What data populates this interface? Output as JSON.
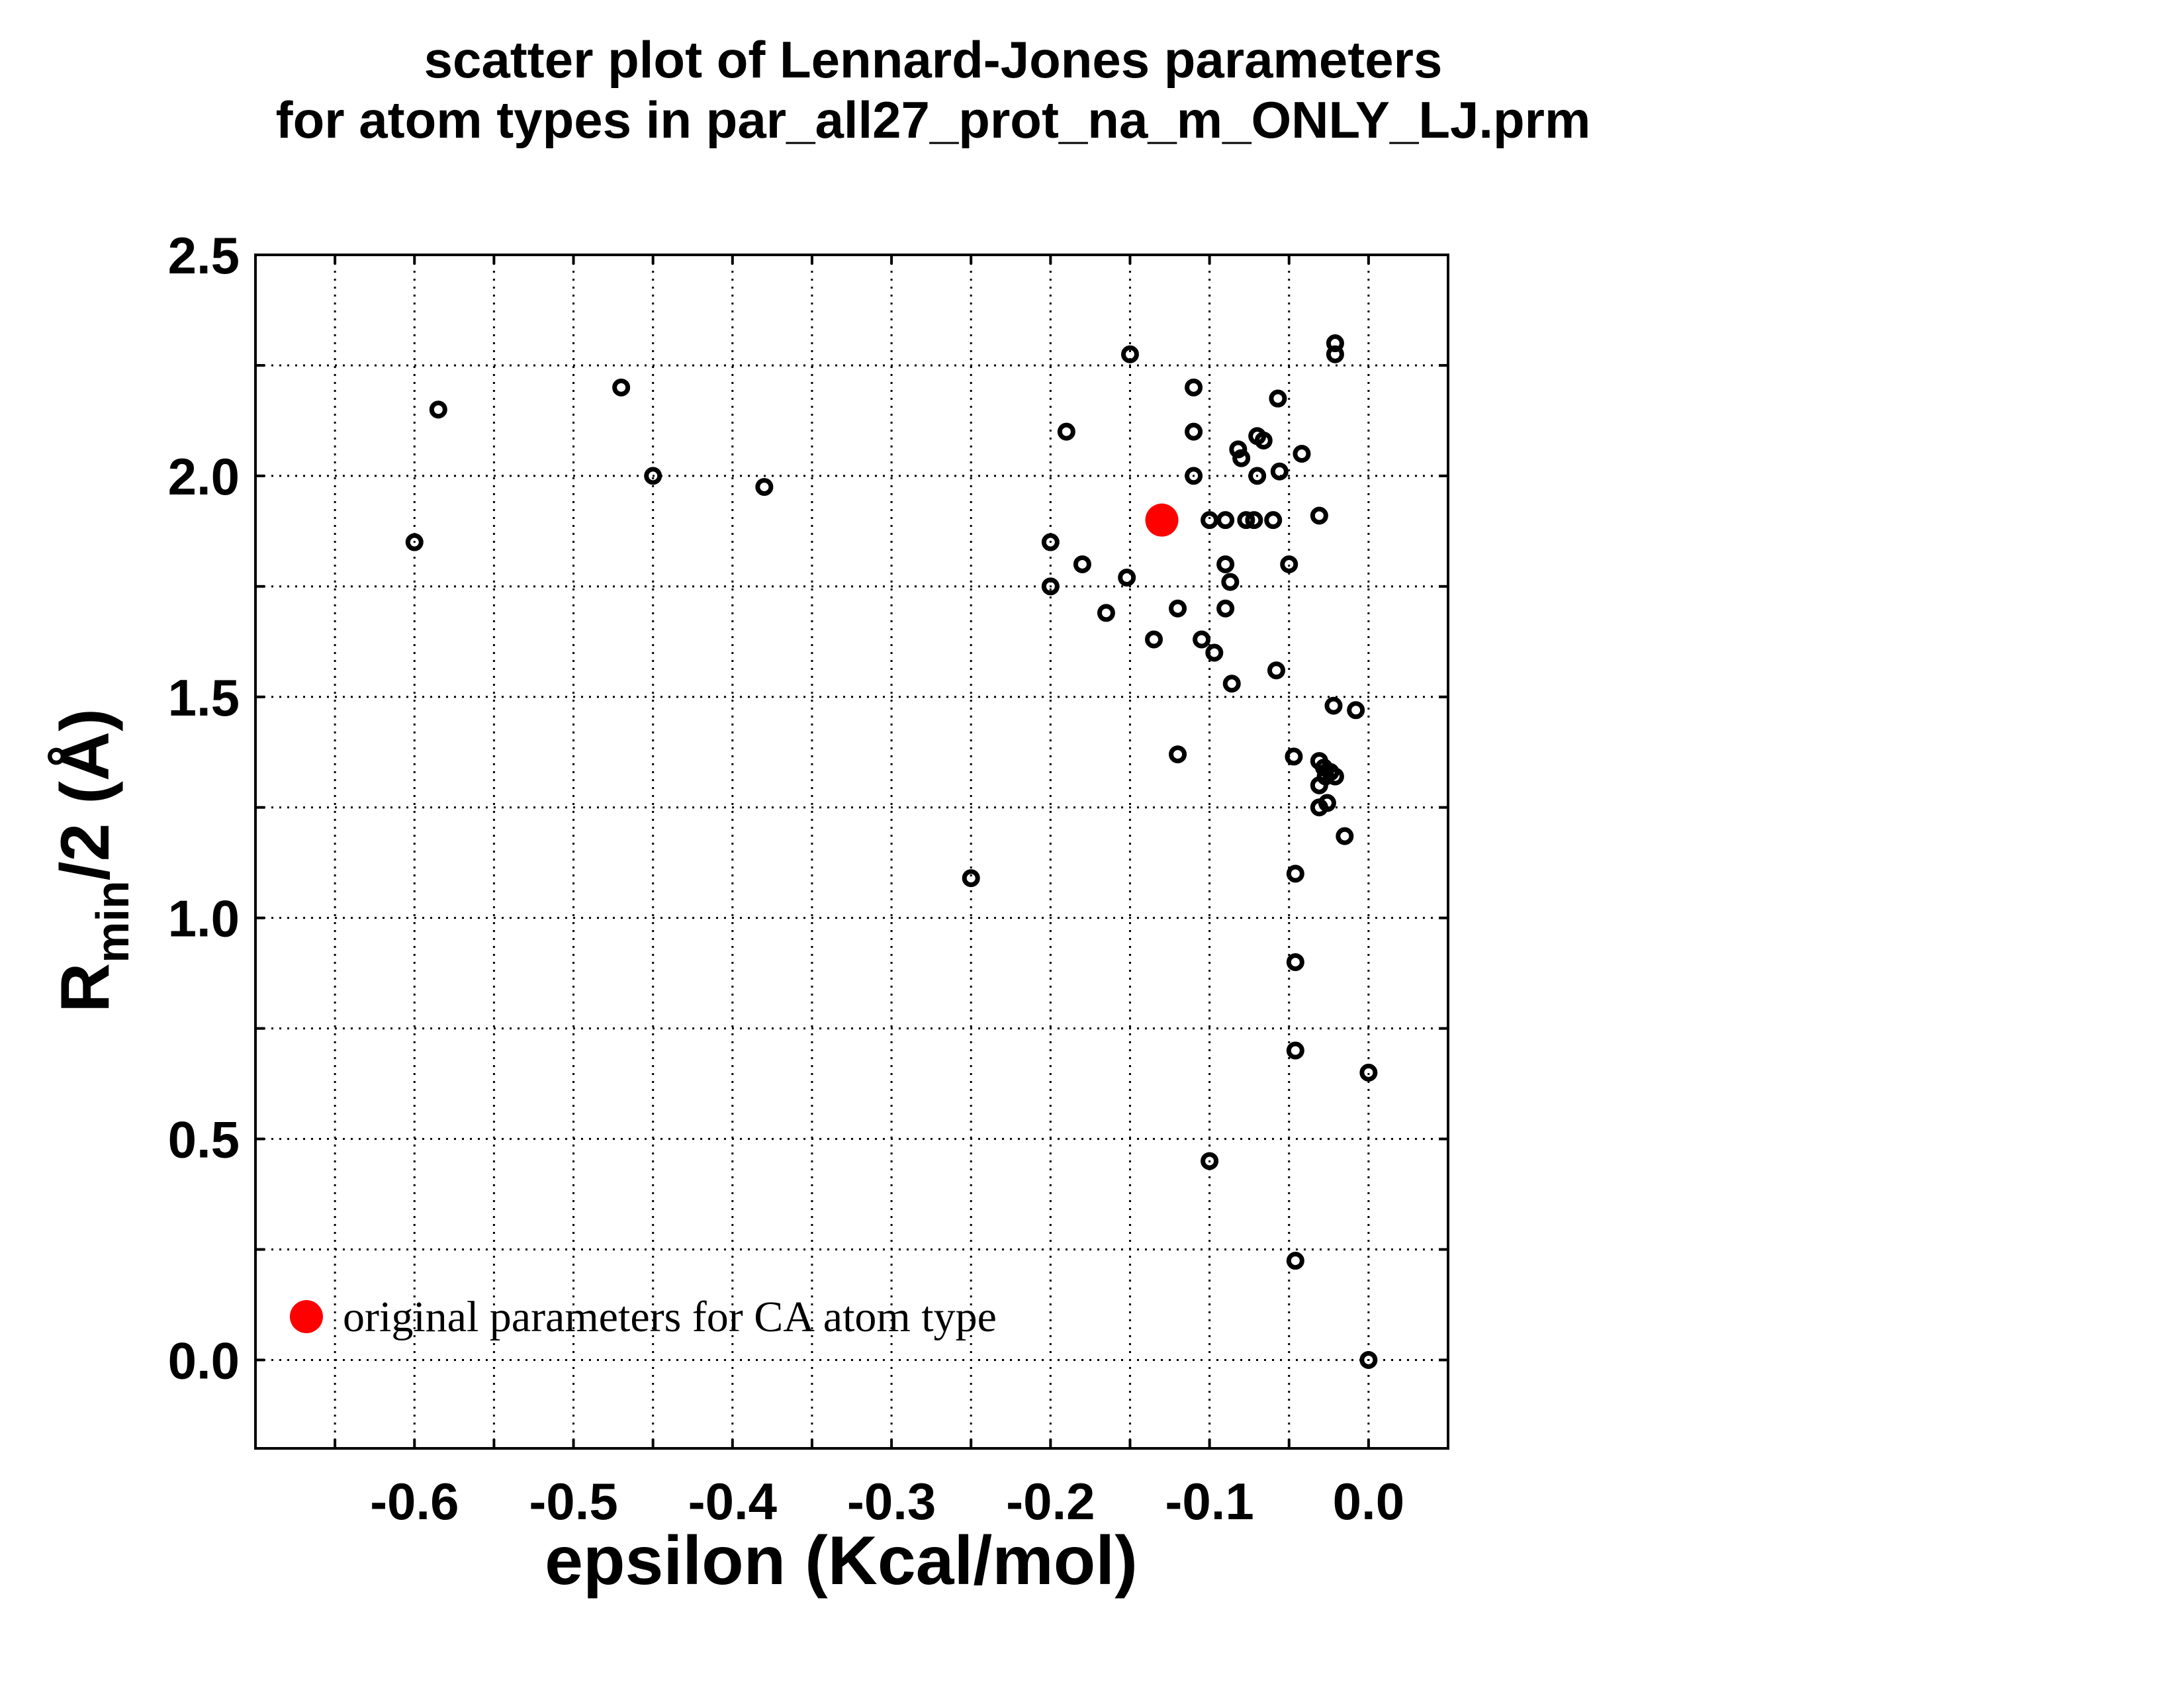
{
  "chart_data": {
    "type": "scatter",
    "title_lines": [
      "scatter plot of Lennard-Jones parameters",
      "for atom types in par_all27_prot_na_m_ONLY_LJ.prm"
    ],
    "xlabel": "epsilon (Kcal/mol)",
    "ylabel": {
      "main": "R",
      "subscript": "min",
      "rest": "/2 (Å)"
    },
    "xlim": [
      -0.7,
      0.05
    ],
    "ylim": [
      -0.2,
      2.5
    ],
    "x_ticks": [
      -0.6,
      -0.5,
      -0.4,
      -0.3,
      -0.2,
      -0.1,
      0.0
    ],
    "x_tick_labels": [
      "-0.6",
      "-0.5",
      "-0.4",
      "-0.3",
      "-0.2",
      "-0.1",
      "0.0"
    ],
    "y_ticks": [
      0.0,
      0.5,
      1.0,
      1.5,
      2.0,
      2.5
    ],
    "y_tick_labels": [
      "0.0",
      "0.5",
      "1.0",
      "1.5",
      "2.0",
      "2.5"
    ],
    "x_grid": [
      -0.65,
      -0.6,
      -0.55,
      -0.5,
      -0.45,
      -0.4,
      -0.35,
      -0.3,
      -0.25,
      -0.2,
      -0.15,
      -0.1,
      -0.05,
      0.0
    ],
    "y_grid": [
      0.0,
      0.25,
      0.5,
      0.75,
      1.0,
      1.25,
      1.5,
      1.75,
      2.0,
      2.25
    ],
    "grid": true,
    "legend_position": "bottom-left",
    "series": [
      {
        "marker": "open-circle",
        "color": "#000000",
        "points": [
          [
            -0.6,
            1.85
          ],
          [
            -0.585,
            2.15
          ],
          [
            -0.47,
            2.2
          ],
          [
            -0.45,
            2.0
          ],
          [
            -0.38,
            1.975
          ],
          [
            -0.25,
            1.09
          ],
          [
            -0.2,
            1.85
          ],
          [
            -0.2,
            1.75
          ],
          [
            -0.19,
            2.1
          ],
          [
            -0.18,
            1.8
          ],
          [
            -0.165,
            1.69
          ],
          [
            -0.152,
            1.77
          ],
          [
            -0.15,
            2.275
          ],
          [
            -0.135,
            1.63
          ],
          [
            -0.13,
            1.9
          ],
          [
            -0.12,
            1.7
          ],
          [
            -0.12,
            1.37
          ],
          [
            -0.11,
            2.2
          ],
          [
            -0.11,
            2.1
          ],
          [
            -0.11,
            2.0
          ],
          [
            -0.105,
            1.63
          ],
          [
            -0.1,
            1.9
          ],
          [
            -0.1,
            0.45
          ],
          [
            -0.097,
            1.6
          ],
          [
            -0.09,
            1.9
          ],
          [
            -0.09,
            1.8
          ],
          [
            -0.09,
            1.7
          ],
          [
            -0.087,
            1.76
          ],
          [
            -0.086,
            1.53
          ],
          [
            -0.082,
            2.06
          ],
          [
            -0.08,
            2.04
          ],
          [
            -0.077,
            1.9
          ],
          [
            -0.072,
            1.9
          ],
          [
            -0.07,
            2.09
          ],
          [
            -0.07,
            2.0
          ],
          [
            -0.066,
            2.08
          ],
          [
            -0.06,
            1.9
          ],
          [
            -0.058,
            1.56
          ],
          [
            -0.057,
            2.175
          ],
          [
            -0.056,
            2.01
          ],
          [
            -0.05,
            1.8
          ],
          [
            -0.047,
            1.365
          ],
          [
            -0.046,
            1.1
          ],
          [
            -0.046,
            0.9
          ],
          [
            -0.046,
            0.7
          ],
          [
            -0.046,
            0.2245
          ],
          [
            -0.042,
            2.05
          ],
          [
            -0.031,
            1.91
          ],
          [
            -0.031,
            1.355
          ],
          [
            -0.031,
            1.3
          ],
          [
            -0.031,
            1.25
          ],
          [
            -0.028,
            1.34
          ],
          [
            -0.027,
            1.32
          ],
          [
            -0.026,
            1.26
          ],
          [
            -0.024,
            1.33
          ],
          [
            -0.022,
            1.48
          ],
          [
            -0.021,
            2.3
          ],
          [
            -0.021,
            2.275
          ],
          [
            -0.021,
            1.32
          ],
          [
            -0.015,
            1.185
          ],
          [
            -0.008,
            1.47
          ],
          [
            0.0,
            0.65
          ],
          [
            0.0,
            0.0
          ]
        ]
      },
      {
        "name": "original parameters for CA atom type",
        "marker": "filled-circle",
        "color": "#ff0000",
        "points": [
          [
            -0.13,
            1.9
          ]
        ]
      }
    ]
  }
}
